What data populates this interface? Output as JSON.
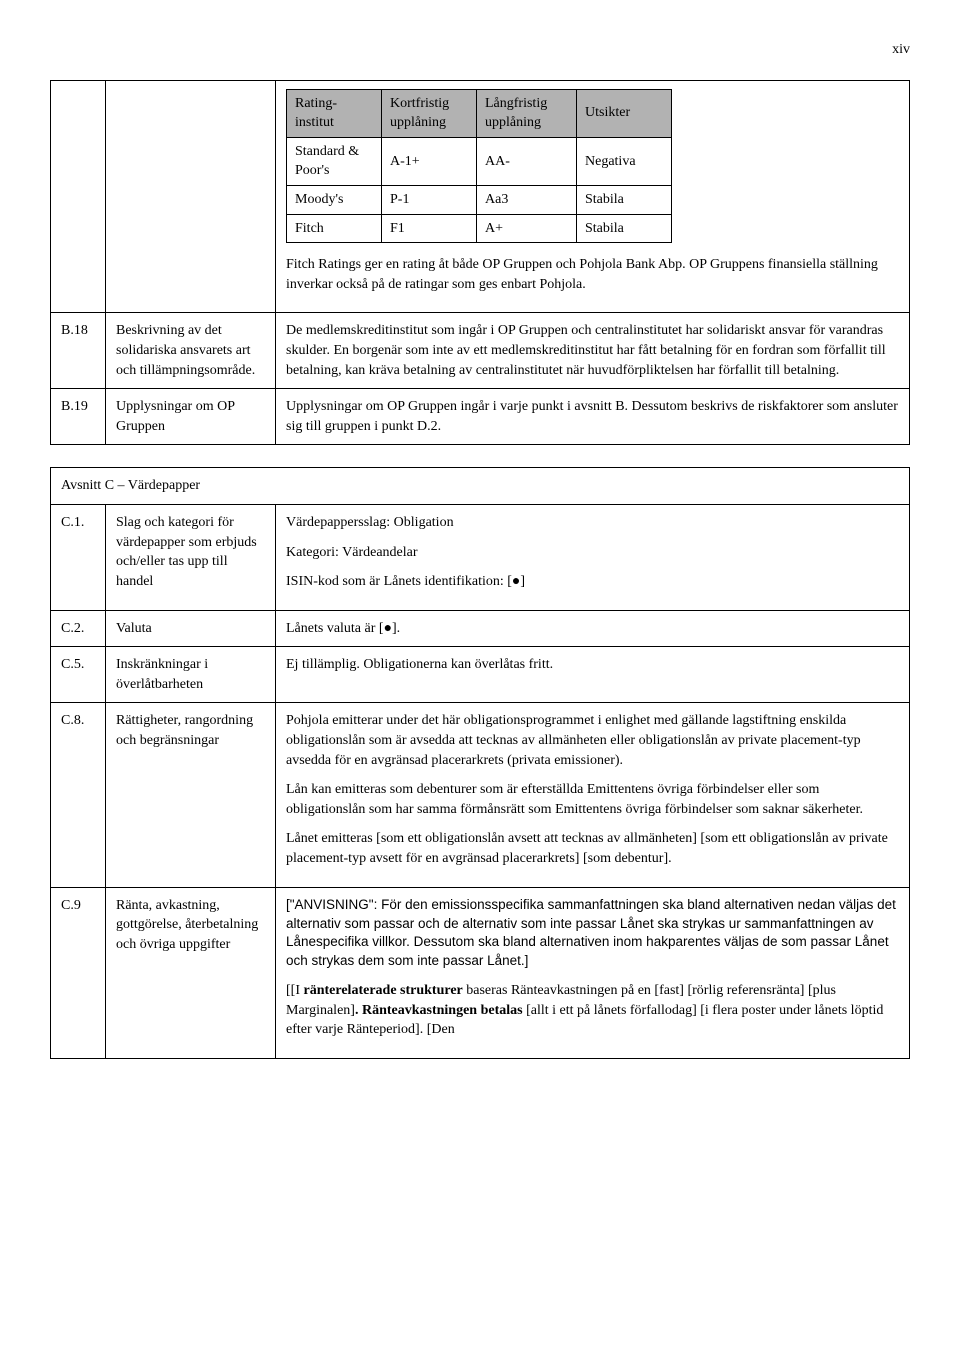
{
  "page_number": "xiv",
  "ratings_table": {
    "headers": [
      "Rating-institut",
      "Kortfristig upplåning",
      "Långfristig upplåning",
      "Utsikter"
    ],
    "rows": [
      [
        "Standard & Poor's",
        "A-1+",
        "AA-",
        "Negativa"
      ],
      [
        "Moody's",
        "P-1",
        "Aa3",
        "Stabila"
      ],
      [
        "Fitch",
        "F1",
        "A+",
        "Stabila"
      ]
    ],
    "header_bg": "#b2b2b2"
  },
  "ratings_para": "Fitch Ratings ger en rating åt både OP Gruppen och Pohjola Bank Abp. OP Gruppens finansiella ställning inverkar också på de ratingar som ges enbart Pohjola.",
  "b18": {
    "code": "B.18",
    "label": "Beskrivning av det solidariska ansvarets art och tillämpningsområde.",
    "text": "De medlemskreditinstitut som ingår i OP Gruppen och centralinstitutet har solidariskt ansvar för varandras skulder. En borgenär som inte av ett medlemskreditinstitut har fått betalning för en fordran som förfallit till betalning, kan kräva betalning av centralinstitutet när huvudförpliktelsen har förfallit till betalning."
  },
  "b19": {
    "code": "B.19",
    "label": "Upplysningar om OP Gruppen",
    "text": "Upplysningar om OP Gruppen ingår i varje punkt i avsnitt B. Dessutom beskrivs de riskfaktorer som ansluter sig till gruppen i punkt D.2."
  },
  "section_c_title": "Avsnitt C – Värdepapper",
  "c1": {
    "code": "C.1.",
    "label": "Slag och kategori för värdepapper som erbjuds och/eller tas upp till handel",
    "lines": [
      "Värdepappersslag: Obligation",
      "Kategori: Värdeandelar",
      "ISIN-kod som är Lånets identifikation: [●]"
    ]
  },
  "c2": {
    "code": "C.2.",
    "label": "Valuta",
    "text": "Lånets valuta är [●]."
  },
  "c5": {
    "code": "C.5.",
    "label": "Inskränkningar i överlåtbarheten",
    "text": "Ej tillämplig. Obligationerna kan överlåtas fritt."
  },
  "c8": {
    "code": "C.8.",
    "label": "Rättigheter, rangordning och begränsningar",
    "paras": [
      "Pohjola emitterar under det här obligationsprogrammet i enlighet med gällande lagstiftning enskilda obligationslån som är avsedda att tecknas av allmänheten eller obligationslån av private placement-typ avsedda för en avgränsad placerarkrets (privata emissioner).",
      "Lån kan emitteras som debenturer som är efterställda Emittentens övriga förbindelser eller som obligationslån som har samma förmånsrätt som Emittentens övriga förbindelser som saknar säkerheter.",
      "Lånet emitteras [som ett obligationslån avsett att tecknas av allmänheten] [som ett obligationslån av private placement-typ avsett för en avgränsad placerarkrets] [som debentur]."
    ]
  },
  "c9": {
    "code": "C.9",
    "label": "Ränta, avkastning, gottgörelse, återbetalning och övriga uppgifter",
    "para1_pre": "[\"ANVISNING\": För den emissionsspecifika sammanfattningen ska bland alternativen nedan väljas det alternativ som passar och de alternativ som inte passar Lånet ska strykas ur sammanfattningen av Lånespecifika villkor. Dessutom ska bland alternativen inom hakparentes väljas de som passar Lånet och strykas dem som inte passar Lånet.]",
    "para2_parts": {
      "p1": "[[I ",
      "b1": "ränterelaterade strukturer",
      "p2": " baseras Ränteavkastningen på en [fast] [rörlig referensränta] [plus Marginalen]",
      "b2": ". Ränteavkastningen betalas ",
      "p3": "[allt i ett på lånets förfallodag] [i flera poster under lånets löptid efter varje Ränteperiod]. [Den"
    }
  }
}
